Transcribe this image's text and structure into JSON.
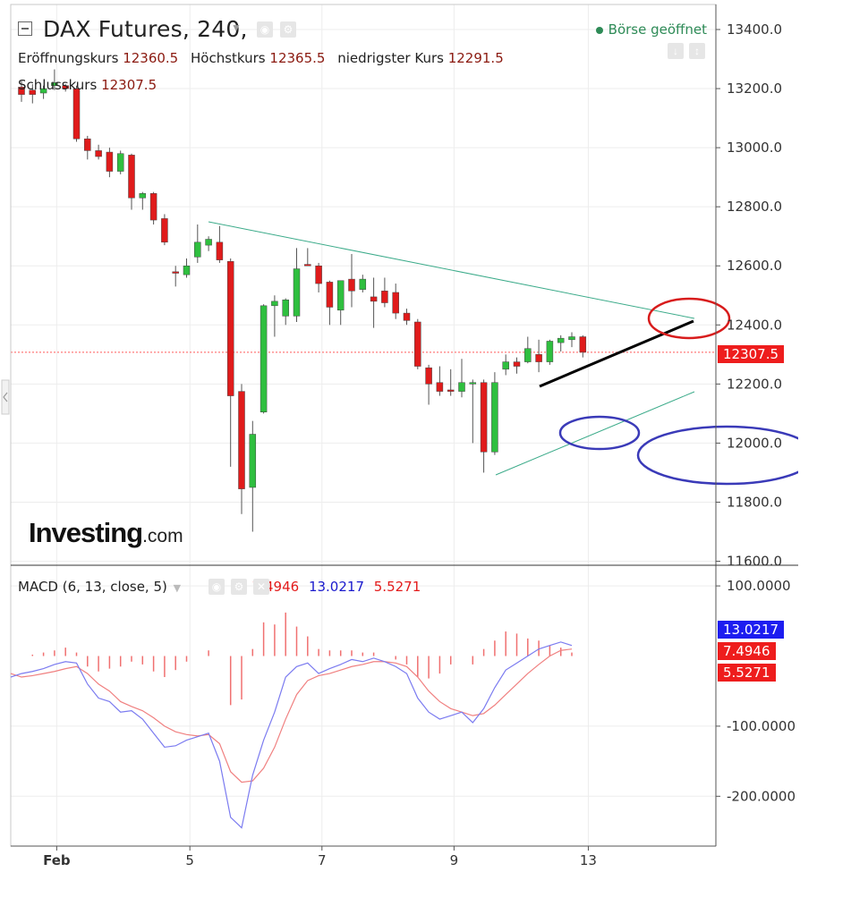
{
  "header": {
    "symbol": "DAX Futures",
    "interval": "240",
    "open_label": "Eröffnungskurs",
    "open_value": "12360.5",
    "high_label": "Höchstkurs",
    "high_value": "12365.5",
    "low_label": "niedrigster Kurs",
    "low_value": "12291.5",
    "close_label": "Schlusskurs",
    "close_value": "12307.5",
    "market_status": "Börse geöffnet"
  },
  "macd_header": {
    "label": "MACD (6, 13, close, 5)",
    "value_a": "7.4946",
    "value_b": "13.0217",
    "value_c": "5.5271"
  },
  "logo": {
    "bold": "Investing",
    "suffix": ".com"
  },
  "price_tag": "12307.5",
  "macd_tags": [
    "13.0217",
    "7.4946",
    "5.5271"
  ],
  "colors": {
    "up": "#2fbf3f",
    "down": "#e01b1b",
    "wick": "#555555",
    "triangle": "#3cab8a",
    "black_line": "#000000",
    "red_circle": "#d81c1c",
    "blue_circle": "#3a3ab8",
    "macd_line": "#7b7bf0",
    "signal_line": "#f08080",
    "histogram": "#f07070",
    "price_line": "#ff5a5a",
    "macd_blue_tag": "#1d1df0",
    "macd_red_tag": "#ee1d1d"
  },
  "chart_data": [
    {
      "type": "candlestick",
      "title": "DAX Futures, 240",
      "x_tick_labels": [
        "Feb",
        "5",
        "7",
        "9",
        "13"
      ],
      "y_ticks": [
        11600,
        11800,
        12000,
        12200,
        12400,
        12600,
        12800,
        13000,
        13200,
        13400
      ],
      "ylim": [
        11600,
        13450
      ],
      "current_price": 12307.5,
      "candles": [
        {
          "o": 13205,
          "h": 13225,
          "l": 13155,
          "c": 13180
        },
        {
          "o": 13195,
          "h": 13215,
          "l": 13150,
          "c": 13180
        },
        {
          "o": 13185,
          "h": 13210,
          "l": 13165,
          "c": 13200
        },
        {
          "o": 13210,
          "h": 13265,
          "l": 13195,
          "c": 13220
        },
        {
          "o": 13210,
          "h": 13215,
          "l": 13190,
          "c": 13200
        },
        {
          "o": 13200,
          "h": 13210,
          "l": 13020,
          "c": 13030
        },
        {
          "o": 13030,
          "h": 13040,
          "l": 12960,
          "c": 12990
        },
        {
          "o": 12990,
          "h": 13010,
          "l": 12960,
          "c": 12970
        },
        {
          "o": 12985,
          "h": 13000,
          "l": 12900,
          "c": 12920
        },
        {
          "o": 12920,
          "h": 12990,
          "l": 12910,
          "c": 12980
        },
        {
          "o": 12975,
          "h": 12980,
          "l": 12790,
          "c": 12830
        },
        {
          "o": 12830,
          "h": 12850,
          "l": 12790,
          "c": 12845
        },
        {
          "o": 12845,
          "h": 12850,
          "l": 12740,
          "c": 12755
        },
        {
          "o": 12760,
          "h": 12775,
          "l": 12670,
          "c": 12680
        },
        {
          "o": 12580,
          "h": 12600,
          "l": 12530,
          "c": 12575
        },
        {
          "o": 12570,
          "h": 12625,
          "l": 12560,
          "c": 12600
        },
        {
          "o": 12630,
          "h": 12740,
          "l": 12610,
          "c": 12680
        },
        {
          "o": 12670,
          "h": 12700,
          "l": 12650,
          "c": 12690
        },
        {
          "o": 12680,
          "h": 12735,
          "l": 12610,
          "c": 12620
        },
        {
          "o": 12615,
          "h": 12625,
          "l": 11920,
          "c": 12160
        },
        {
          "o": 12175,
          "h": 12200,
          "l": 11760,
          "c": 11845
        },
        {
          "o": 11850,
          "h": 12075,
          "l": 11700,
          "c": 12030
        },
        {
          "o": 12105,
          "h": 12470,
          "l": 12100,
          "c": 12465
        },
        {
          "o": 12465,
          "h": 12500,
          "l": 12360,
          "c": 12480
        },
        {
          "o": 12430,
          "h": 12490,
          "l": 12400,
          "c": 12485
        },
        {
          "o": 12430,
          "h": 12660,
          "l": 12410,
          "c": 12590
        },
        {
          "o": 12605,
          "h": 12660,
          "l": 12600,
          "c": 12600
        },
        {
          "o": 12600,
          "h": 12610,
          "l": 12510,
          "c": 12540
        },
        {
          "o": 12545,
          "h": 12550,
          "l": 12400,
          "c": 12460
        },
        {
          "o": 12450,
          "h": 12550,
          "l": 12400,
          "c": 12550
        },
        {
          "o": 12555,
          "h": 12640,
          "l": 12460,
          "c": 12515
        },
        {
          "o": 12520,
          "h": 12570,
          "l": 12510,
          "c": 12555
        },
        {
          "o": 12495,
          "h": 12560,
          "l": 12390,
          "c": 12480
        },
        {
          "o": 12515,
          "h": 12560,
          "l": 12460,
          "c": 12475
        },
        {
          "o": 12510,
          "h": 12540,
          "l": 12420,
          "c": 12440
        },
        {
          "o": 12440,
          "h": 12455,
          "l": 12400,
          "c": 12415
        },
        {
          "o": 12410,
          "h": 12420,
          "l": 12250,
          "c": 12260
        },
        {
          "o": 12255,
          "h": 12265,
          "l": 12130,
          "c": 12200
        },
        {
          "o": 12205,
          "h": 12260,
          "l": 12160,
          "c": 12175
        },
        {
          "o": 12180,
          "h": 12250,
          "l": 12160,
          "c": 12175
        },
        {
          "o": 12175,
          "h": 12285,
          "l": 12155,
          "c": 12205
        },
        {
          "o": 12200,
          "h": 12215,
          "l": 12000,
          "c": 12205
        },
        {
          "o": 12205,
          "h": 12215,
          "l": 11900,
          "c": 11970
        },
        {
          "o": 11970,
          "h": 12240,
          "l": 11960,
          "c": 12205
        },
        {
          "o": 12250,
          "h": 12300,
          "l": 12230,
          "c": 12275
        },
        {
          "o": 12275,
          "h": 12290,
          "l": 12235,
          "c": 12260
        },
        {
          "o": 12275,
          "h": 12360,
          "l": 12270,
          "c": 12320
        },
        {
          "o": 12300,
          "h": 12350,
          "l": 12240,
          "c": 12275
        },
        {
          "o": 12275,
          "h": 12350,
          "l": 12265,
          "c": 12345
        },
        {
          "o": 12340,
          "h": 12365,
          "l": 12310,
          "c": 12355
        },
        {
          "o": 12350,
          "h": 12375,
          "l": 12325,
          "c": 12360
        },
        {
          "o": 12360,
          "h": 12365,
          "l": 12290,
          "c": 12307.5
        }
      ]
    },
    {
      "type": "line",
      "title": "MACD (6, 13, close, 5)",
      "y_ticks": [
        -200,
        -100,
        100
      ],
      "ylim": [
        -260,
        130
      ],
      "series": [
        {
          "name": "MACD",
          "values": [
            -25,
            -22,
            -18,
            -12,
            -8,
            -10,
            -40,
            -60,
            -65,
            -80,
            -78,
            -90,
            -110,
            -130,
            -128,
            -120,
            -115,
            -110,
            -150,
            -230,
            -245,
            -170,
            -120,
            -80,
            -30,
            -15,
            -10,
            -25,
            -18,
            -12,
            -5,
            -8,
            -3,
            -8,
            -15,
            -25,
            -60,
            -80,
            -90,
            -85,
            -80,
            -95,
            -75,
            -45,
            -20,
            -10,
            0,
            10,
            15,
            20,
            15
          ]
        },
        {
          "name": "Signal",
          "values": [
            -30,
            -28,
            -25,
            -22,
            -18,
            -15,
            -25,
            -40,
            -50,
            -65,
            -72,
            -78,
            -88,
            -100,
            -108,
            -112,
            -114,
            -112,
            -125,
            -165,
            -180,
            -178,
            -160,
            -130,
            -90,
            -55,
            -35,
            -28,
            -25,
            -20,
            -15,
            -12,
            -8,
            -8,
            -10,
            -15,
            -30,
            -50,
            -65,
            -75,
            -80,
            -85,
            -82,
            -70,
            -55,
            -40,
            -25,
            -12,
            0,
            8,
            10
          ]
        },
        {
          "name": "Histogram",
          "values": [
            0,
            2,
            5,
            8,
            12,
            5,
            -15,
            -22,
            -18,
            -15,
            -8,
            -12,
            -22,
            -30,
            -20,
            -8,
            0,
            8,
            0,
            -70,
            -62,
            10,
            48,
            45,
            62,
            42,
            28,
            10,
            8,
            8,
            8,
            5,
            5,
            0,
            -5,
            -12,
            -30,
            -32,
            -25,
            -12,
            0,
            -12,
            10,
            22,
            35,
            32,
            25,
            22,
            15,
            12,
            5
          ]
        }
      ]
    }
  ]
}
